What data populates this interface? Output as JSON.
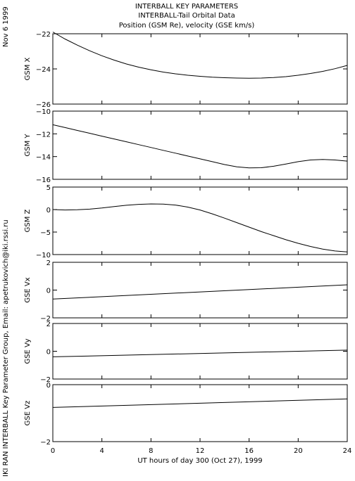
{
  "header": {
    "line1": "INTERBALL KEY PARAMETERS",
    "line2": "INTERBALL-Tail Orbital Data",
    "line3": "Position (GSM Re), velocity (GSE km/s)"
  },
  "side_date": "Nov  6 1999",
  "side_credit": "IKI RAN INTERBALL Key Parameter Group, Email: apetrukovich@iki.rssi.ru",
  "chart_data": {
    "type": "line",
    "xlabel": "UT hours of day 300 (Oct 27), 1999",
    "xlim": [
      0,
      24
    ],
    "xticks": [
      0,
      4,
      8,
      12,
      16,
      20,
      24
    ],
    "grid": false,
    "panels": [
      {
        "ylabel": "GSM X",
        "ylim": [
          -26,
          -22
        ],
        "yticks": [
          -22,
          -24,
          -26
        ],
        "x": [
          0,
          1,
          2,
          3,
          4,
          5,
          6,
          7,
          8,
          9,
          10,
          11,
          12,
          13,
          14,
          15,
          16,
          17,
          18,
          19,
          20,
          21,
          22,
          23,
          24
        ],
        "y": [
          -21.9,
          -22.3,
          -22.65,
          -22.97,
          -23.25,
          -23.5,
          -23.72,
          -23.9,
          -24.05,
          -24.18,
          -24.28,
          -24.36,
          -24.42,
          -24.47,
          -24.5,
          -24.52,
          -24.53,
          -24.52,
          -24.49,
          -24.44,
          -24.36,
          -24.26,
          -24.14,
          -23.99,
          -23.8
        ]
      },
      {
        "ylabel": "GSM Y",
        "ylim": [
          -16,
          -10
        ],
        "yticks": [
          -10,
          -12,
          -14,
          -16
        ],
        "x": [
          0,
          1,
          2,
          3,
          4,
          5,
          6,
          7,
          8,
          9,
          10,
          11,
          12,
          13,
          14,
          15,
          16,
          17,
          18,
          19,
          20,
          21,
          22,
          23,
          24
        ],
        "y": [
          -11.2,
          -11.45,
          -11.7,
          -11.95,
          -12.2,
          -12.45,
          -12.7,
          -12.95,
          -13.2,
          -13.45,
          -13.7,
          -13.95,
          -14.2,
          -14.45,
          -14.7,
          -14.9,
          -15.0,
          -14.98,
          -14.85,
          -14.65,
          -14.45,
          -14.3,
          -14.25,
          -14.3,
          -14.4
        ]
      },
      {
        "ylabel": "GSM Z",
        "ylim": [
          -10,
          5
        ],
        "yticks": [
          5,
          0,
          -5,
          -10
        ],
        "x": [
          0,
          1,
          2,
          3,
          4,
          5,
          6,
          7,
          8,
          9,
          10,
          11,
          12,
          13,
          14,
          15,
          16,
          17,
          18,
          19,
          20,
          21,
          22,
          23,
          24
        ],
        "y": [
          0.0,
          -0.1,
          -0.05,
          0.1,
          0.35,
          0.65,
          0.95,
          1.15,
          1.25,
          1.2,
          1.0,
          0.55,
          -0.1,
          -0.95,
          -1.9,
          -2.9,
          -3.9,
          -4.9,
          -5.8,
          -6.7,
          -7.5,
          -8.2,
          -8.8,
          -9.2,
          -9.4
        ]
      },
      {
        "ylabel": "GSE Vx",
        "ylim": [
          -2,
          2
        ],
        "yticks": [
          2,
          0,
          -2
        ],
        "x": [
          0,
          24
        ],
        "y": [
          -0.65,
          0.38
        ]
      },
      {
        "ylabel": "GSE Vy",
        "ylim": [
          -2,
          2
        ],
        "yticks": [
          2,
          0,
          -2
        ],
        "x": [
          0,
          24
        ],
        "y": [
          -0.4,
          0.08
        ]
      },
      {
        "ylabel": "GSE Vz",
        "ylim": [
          -2,
          0
        ],
        "yticks": [
          0,
          -2
        ],
        "x": [
          0,
          24
        ],
        "y": [
          -0.8,
          -0.5
        ]
      }
    ]
  }
}
